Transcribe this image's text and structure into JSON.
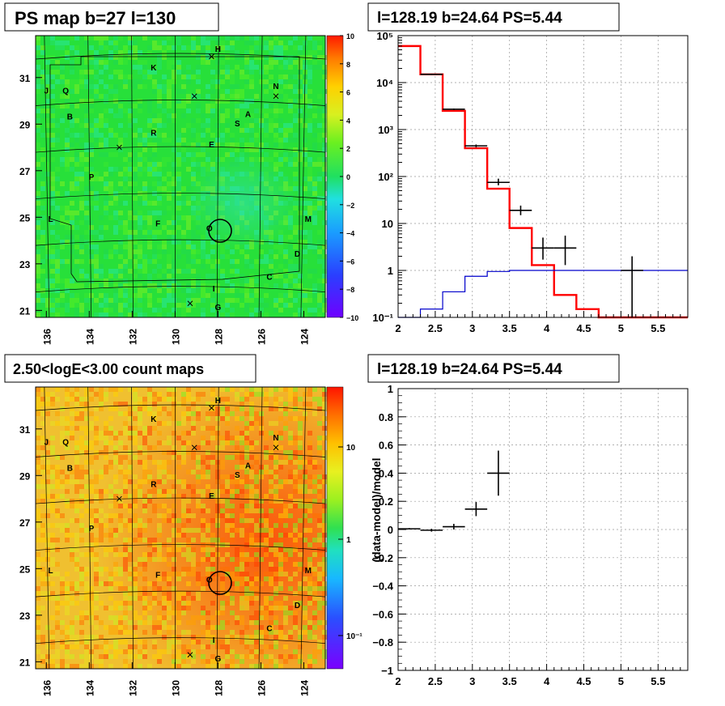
{
  "panels": {
    "tl": {
      "title": "PS map b=27 l=130"
    },
    "tr": {
      "title": "l=128.19 b=24.64 PS=5.44"
    },
    "bl": {
      "title": "2.50<logE<3.00 count maps"
    },
    "br": {
      "title": "l=128.19 b=24.64 PS=5.44",
      "ylabel": "(data-model)/model"
    }
  },
  "maps": {
    "x_ticks": [
      "136",
      "134",
      "132",
      "130",
      "128",
      "126",
      "124"
    ],
    "y_ticks": [
      "31",
      "29",
      "27",
      "25",
      "23",
      "21"
    ],
    "source_labels": [
      {
        "label": "H",
        "l": 128.0,
        "b": 32.2
      },
      {
        "label": "K",
        "l": 131.0,
        "b": 31.4
      },
      {
        "label": "J",
        "l": 136.0,
        "b": 30.4
      },
      {
        "label": "Q",
        "l": 135.1,
        "b": 30.4
      },
      {
        "label": "N",
        "l": 125.3,
        "b": 30.6
      },
      {
        "label": "A",
        "l": 126.6,
        "b": 29.4
      },
      {
        "label": "B",
        "l": 134.9,
        "b": 29.3
      },
      {
        "label": "S",
        "l": 127.1,
        "b": 29.0
      },
      {
        "label": "R",
        "l": 131.0,
        "b": 28.6
      },
      {
        "label": "E",
        "l": 128.3,
        "b": 28.1
      },
      {
        "label": "P",
        "l": 133.9,
        "b": 26.7
      },
      {
        "label": "L",
        "l": 135.8,
        "b": 24.9
      },
      {
        "label": "F",
        "l": 130.8,
        "b": 24.7
      },
      {
        "label": "O",
        "l": 128.4,
        "b": 24.5
      },
      {
        "label": "M",
        "l": 123.8,
        "b": 24.9
      },
      {
        "label": "D",
        "l": 124.3,
        "b": 23.4
      },
      {
        "label": "C",
        "l": 125.6,
        "b": 22.4
      },
      {
        "label": "I",
        "l": 128.2,
        "b": 21.9
      },
      {
        "label": "G",
        "l": 128.0,
        "b": 21.1
      }
    ],
    "crosses": [
      {
        "l": 128.3,
        "b": 31.9
      },
      {
        "l": 129.1,
        "b": 30.2
      },
      {
        "l": 132.6,
        "b": 28.0
      },
      {
        "l": 125.3,
        "b": 30.2
      },
      {
        "l": 129.3,
        "b": 21.3
      }
    ],
    "ps_colorbar": {
      "min": -10,
      "max": 10,
      "ticks": [
        "10",
        "8",
        "6",
        "4",
        "2",
        "0",
        "−2",
        "−4",
        "−6",
        "−8",
        "−10"
      ]
    },
    "count_colorbar": {
      "ticks": [
        "10",
        "1",
        "10⁻¹"
      ]
    }
  },
  "chart_data": [
    {
      "type": "line",
      "panel": "top-right",
      "title": "l=128.19 b=24.64 PS=5.44",
      "xlabel": "",
      "ylabel": "",
      "xlim": [
        2,
        5.9
      ],
      "ylim": [
        0.1,
        100000
      ],
      "ylog": true,
      "grid": true,
      "x_ticks": [
        "2",
        "2.5",
        "3",
        "3.5",
        "4",
        "4.5",
        "5",
        "5.5"
      ],
      "y_ticks": [
        "10⁻¹",
        "1",
        "10",
        "10²",
        "10³",
        "10⁴",
        "10⁵"
      ],
      "series": [
        {
          "style": "red-step",
          "color": "#ff0000",
          "edges": [
            2.0,
            2.3,
            2.6,
            2.9,
            3.2,
            3.5,
            3.8,
            4.1,
            4.4,
            4.7,
            5.0,
            5.3,
            5.6,
            5.9
          ],
          "values": [
            60000,
            15000,
            2500,
            400,
            55,
            8,
            1.3,
            0.3,
            0.15,
            0.1,
            0.1,
            0.1,
            0.1
          ]
        },
        {
          "style": "blue-step",
          "color": "#0000cc",
          "edges": [
            2.0,
            2.3,
            2.6,
            2.9,
            3.2,
            3.5,
            3.8,
            4.1,
            4.4,
            4.7,
            5.0,
            5.3,
            5.6,
            5.9
          ],
          "values": [
            0.05,
            0.15,
            0.35,
            0.75,
            0.95,
            1.0,
            1.0,
            1.0,
            1.0,
            1.0,
            1.0,
            1.0,
            1.0
          ]
        },
        {
          "style": "points",
          "color": "#000000",
          "points": [
            {
              "x": 2.45,
              "xerr": 0.15,
              "y": 15000,
              "ylo": 14500,
              "yhi": 15500
            },
            {
              "x": 2.75,
              "xerr": 0.15,
              "y": 2700,
              "ylo": 2600,
              "yhi": 2800
            },
            {
              "x": 3.05,
              "xerr": 0.15,
              "y": 450,
              "ylo": 420,
              "yhi": 480
            },
            {
              "x": 3.35,
              "xerr": 0.15,
              "y": 75,
              "ylo": 65,
              "yhi": 90
            },
            {
              "x": 3.65,
              "xerr": 0.15,
              "y": 19,
              "ylo": 15,
              "yhi": 24
            },
            {
              "x": 3.95,
              "xerr": 0.15,
              "y": 3,
              "ylo": 1.7,
              "yhi": 5
            },
            {
              "x": 4.25,
              "xerr": 0.15,
              "y": 3,
              "ylo": 1.3,
              "yhi": 5.5
            },
            {
              "x": 5.15,
              "xerr": 0.15,
              "y": 1,
              "ylo": 0.1,
              "yhi": 2
            }
          ]
        }
      ]
    },
    {
      "type": "scatter",
      "panel": "bottom-right",
      "title": "l=128.19 b=24.64 PS=5.44",
      "xlabel": "",
      "ylabel": "(data-model)/model",
      "xlim": [
        2,
        5.9
      ],
      "ylim": [
        -1,
        1
      ],
      "grid": true,
      "x_ticks": [
        "2",
        "2.5",
        "3",
        "3.5",
        "4",
        "4.5",
        "5",
        "5.5"
      ],
      "y_ticks": [
        "1",
        "0.8",
        "0.6",
        "0.4",
        "0.2",
        "0",
        "−0.2",
        "−0.4",
        "−0.6",
        "−0.8",
        "−1"
      ],
      "points": [
        {
          "x": 2.15,
          "xerr": 0.15,
          "y": 0.005,
          "yerr": 0.005
        },
        {
          "x": 2.45,
          "xerr": 0.15,
          "y": -0.005,
          "yerr": 0.01
        },
        {
          "x": 2.75,
          "xerr": 0.15,
          "y": 0.02,
          "yerr": 0.02
        },
        {
          "x": 3.05,
          "xerr": 0.15,
          "y": 0.145,
          "yerr": 0.05
        },
        {
          "x": 3.35,
          "xerr": 0.15,
          "y": 0.4,
          "yerr": 0.16
        }
      ]
    }
  ]
}
